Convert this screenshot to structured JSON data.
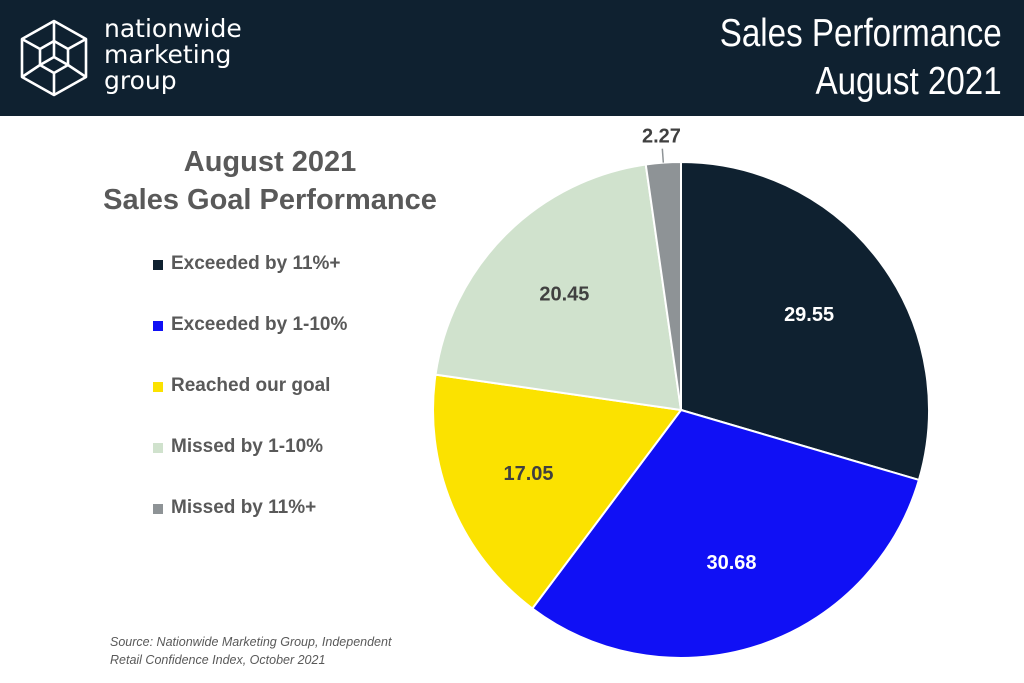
{
  "header": {
    "logo_lines": [
      "nationwide",
      "marketing",
      "group"
    ],
    "title_lines": [
      "Sales Performance",
      "August 2021"
    ],
    "background": "#0f2130"
  },
  "chart_data": {
    "type": "pie",
    "title_lines": [
      "August 2021",
      "Sales Goal Performance"
    ],
    "legend_position": "left",
    "slices": [
      {
        "label": "Exceeded by 11%+",
        "value": 29.55,
        "value_label": "29.55",
        "color": "#0f2130",
        "label_color": "#ffffff"
      },
      {
        "label": "Exceeded by 1-10%",
        "value": 30.68,
        "value_label": "30.68",
        "color": "#1010f5",
        "label_color": "#ffffff"
      },
      {
        "label": "Reached our goal",
        "value": 17.05,
        "value_label": "17.05",
        "color": "#fbe200",
        "label_color": "#404040"
      },
      {
        "label": "Missed by 1-10%",
        "value": 20.45,
        "value_label": "20.45",
        "color": "#d0e2cd",
        "label_color": "#404040"
      },
      {
        "label": "Missed by 11%+",
        "value": 2.27,
        "value_label": "2.27",
        "color": "#8e9396",
        "label_color": "#404040"
      }
    ]
  },
  "source": {
    "lines": [
      "Source: Nationwide Marketing Group, Independent",
      "Retail Confidence Index, October 2021"
    ]
  }
}
